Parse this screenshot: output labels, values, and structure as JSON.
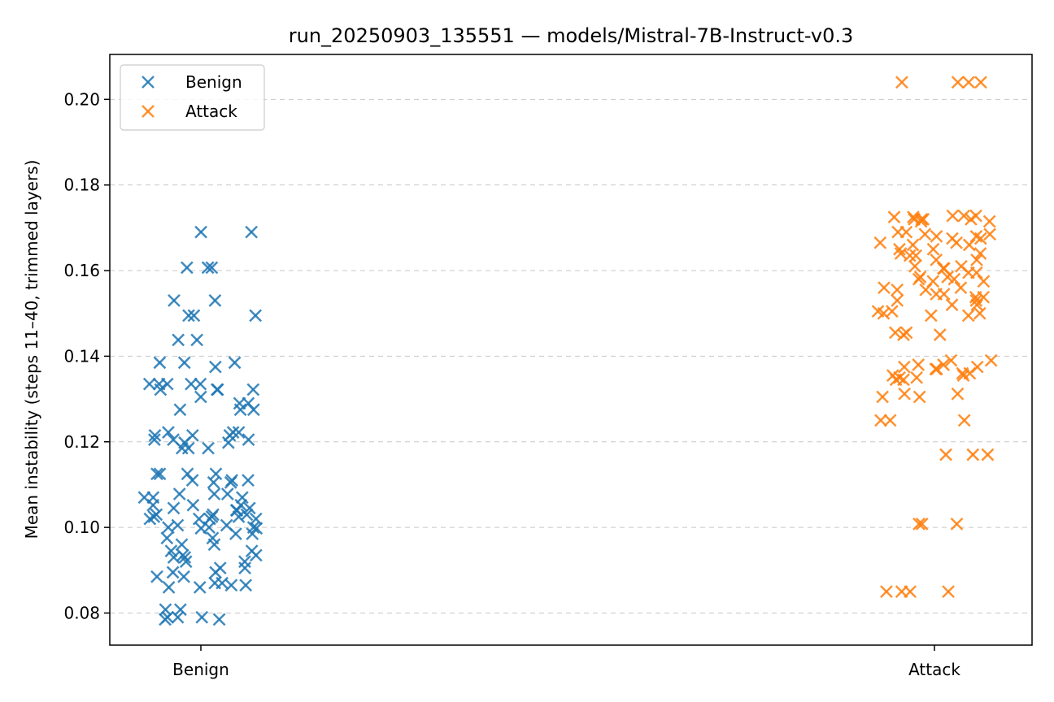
{
  "chart_data": {
    "type": "scatter",
    "title": "run_20250903_135551 — models/Mistral-7B-Instruct-v0.3",
    "xlabel": "",
    "ylabel": "Mean instability (steps 11–40, trimmed layers)",
    "categories": [
      "Benign",
      "Attack"
    ],
    "ylim": [
      0.0725,
      0.2105
    ],
    "yticks": [
      "0.08",
      "0.10",
      "0.12",
      "0.14",
      "0.16",
      "0.18",
      "0.20"
    ],
    "grid": "y-dashed",
    "legend": {
      "placement": "top-left",
      "entries": [
        "Benign",
        "Attack"
      ]
    },
    "colors": {
      "Benign": "#1f77b4",
      "Attack": "#ff7f0e"
    },
    "series": [
      {
        "name": "Benign",
        "category": "Benign",
        "values": [
          0.169,
          0.169,
          0.1607,
          0.1607,
          0.1607,
          0.153,
          0.153,
          0.1495,
          0.1495,
          0.1495,
          0.1438,
          0.1438,
          0.1385,
          0.1385,
          0.1385,
          0.1375,
          0.1335,
          0.1335,
          0.1335,
          0.1335,
          0.1335,
          0.1322,
          0.1322,
          0.1322,
          0.1322,
          0.1305,
          0.129,
          0.129,
          0.1275,
          0.1275,
          0.1275,
          0.1222,
          0.1222,
          0.1222,
          0.1215,
          0.1215,
          0.1215,
          0.1205,
          0.1205,
          0.1205,
          0.1198,
          0.1198,
          0.1185,
          0.1185,
          0.1185,
          0.1125,
          0.1125,
          0.1125,
          0.1125,
          0.111,
          0.111,
          0.111,
          0.1105,
          0.1105,
          0.1078,
          0.1078,
          0.1078,
          0.107,
          0.107,
          0.107,
          0.1052,
          0.1052,
          0.1052,
          0.1045,
          0.1045,
          0.104,
          0.104,
          0.103,
          0.103,
          0.103,
          0.1025,
          0.1025,
          0.1025,
          0.102,
          0.102,
          0.102,
          0.102,
          0.1005,
          0.1005,
          0.1,
          0.1,
          0.1,
          0.0998,
          0.0998,
          0.0985,
          0.0985,
          0.0975,
          0.0975,
          0.096,
          0.096,
          0.0945,
          0.0945,
          0.0935,
          0.0935,
          0.093,
          0.093,
          0.092,
          0.092,
          0.0905,
          0.0905,
          0.0895,
          0.0895,
          0.0885,
          0.0885,
          0.087,
          0.087,
          0.0865,
          0.0865,
          0.086,
          0.086,
          0.0808,
          0.0808,
          0.079,
          0.079,
          0.079,
          0.0785,
          0.0785
        ]
      },
      {
        "name": "Attack",
        "category": "Attack",
        "values": [
          0.204,
          0.204,
          0.204,
          0.204,
          0.1728,
          0.1728,
          0.1728,
          0.1725,
          0.1725,
          0.172,
          0.172,
          0.172,
          0.172,
          0.1715,
          0.1715,
          0.169,
          0.169,
          0.1685,
          0.1685,
          0.168,
          0.168,
          0.1675,
          0.1675,
          0.1665,
          0.1665,
          0.166,
          0.166,
          0.165,
          0.165,
          0.164,
          0.164,
          0.1635,
          0.1635,
          0.1625,
          0.1625,
          0.161,
          0.161,
          0.1605,
          0.1605,
          0.1595,
          0.1595,
          0.1585,
          0.1585,
          0.158,
          0.158,
          0.1575,
          0.1575,
          0.156,
          0.156,
          0.1555,
          0.1555,
          0.1545,
          0.1545,
          0.1538,
          0.1538,
          0.153,
          0.153,
          0.152,
          0.152,
          0.1505,
          0.1505,
          0.15,
          0.15,
          0.1495,
          0.1495,
          0.1455,
          0.1455,
          0.145,
          0.145,
          0.139,
          0.139,
          0.138,
          0.138,
          0.1375,
          0.1375,
          0.137,
          0.137,
          0.136,
          0.136,
          0.1355,
          0.1355,
          0.135,
          0.135,
          0.1345,
          0.1345,
          0.1312,
          0.1312,
          0.1305,
          0.1305,
          0.125,
          0.125,
          0.125,
          0.117,
          0.117,
          0.117,
          0.1008,
          0.1008,
          0.1008,
          0.085,
          0.085,
          0.085,
          0.085
        ]
      }
    ]
  }
}
